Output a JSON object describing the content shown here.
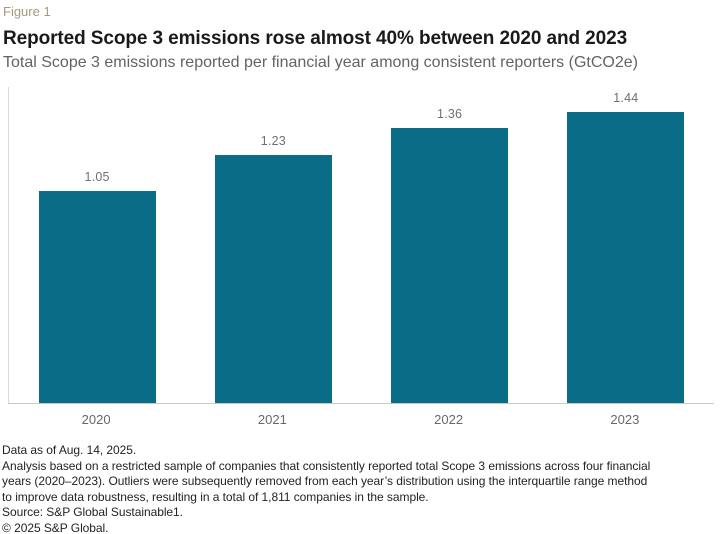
{
  "figure_label": "Figure 1",
  "title": "Reported Scope 3 emissions rose almost 40% between 2020 and 2023",
  "subtitle": "Total Scope 3 emissions reported per financial year among consistent reporters (GtCO2e)",
  "chart_data": {
    "type": "bar",
    "categories": [
      "2020",
      "2021",
      "2022",
      "2023"
    ],
    "values": [
      1.05,
      1.23,
      1.36,
      1.44
    ],
    "value_labels": [
      "1.05",
      "1.23",
      "1.36",
      "1.44"
    ],
    "title": "Total Scope 3 emissions reported per financial year among consistent reporters",
    "xlabel": "",
    "ylabel": "",
    "unit": "GtCO2e",
    "ylim": [
      0,
      1.565
    ],
    "grid": "off",
    "legend": "none",
    "bar_color": "#0a6c86",
    "value_label_position": "above-bar"
  },
  "colors": {
    "accent_teal": "#0a6c86",
    "figure_label_tan": "#a39a80",
    "axis_line_gray": "#c9c9c9"
  },
  "footnotes": {
    "data_as_of": "Data as of Aug. 14, 2025.",
    "analysis": "Analysis based on a restricted sample of companies that consistently reported total Scope 3 emissions across four financial\nyears (2020–2023). Outliers were subsequently removed from each year’s distribution using the interquartile range method\nto improve data robustness, resulting in a total of 1,811 companies in the sample.",
    "source": "Source: S&P Global Sustainable1.",
    "copyright": "© 2025 S&P Global."
  }
}
